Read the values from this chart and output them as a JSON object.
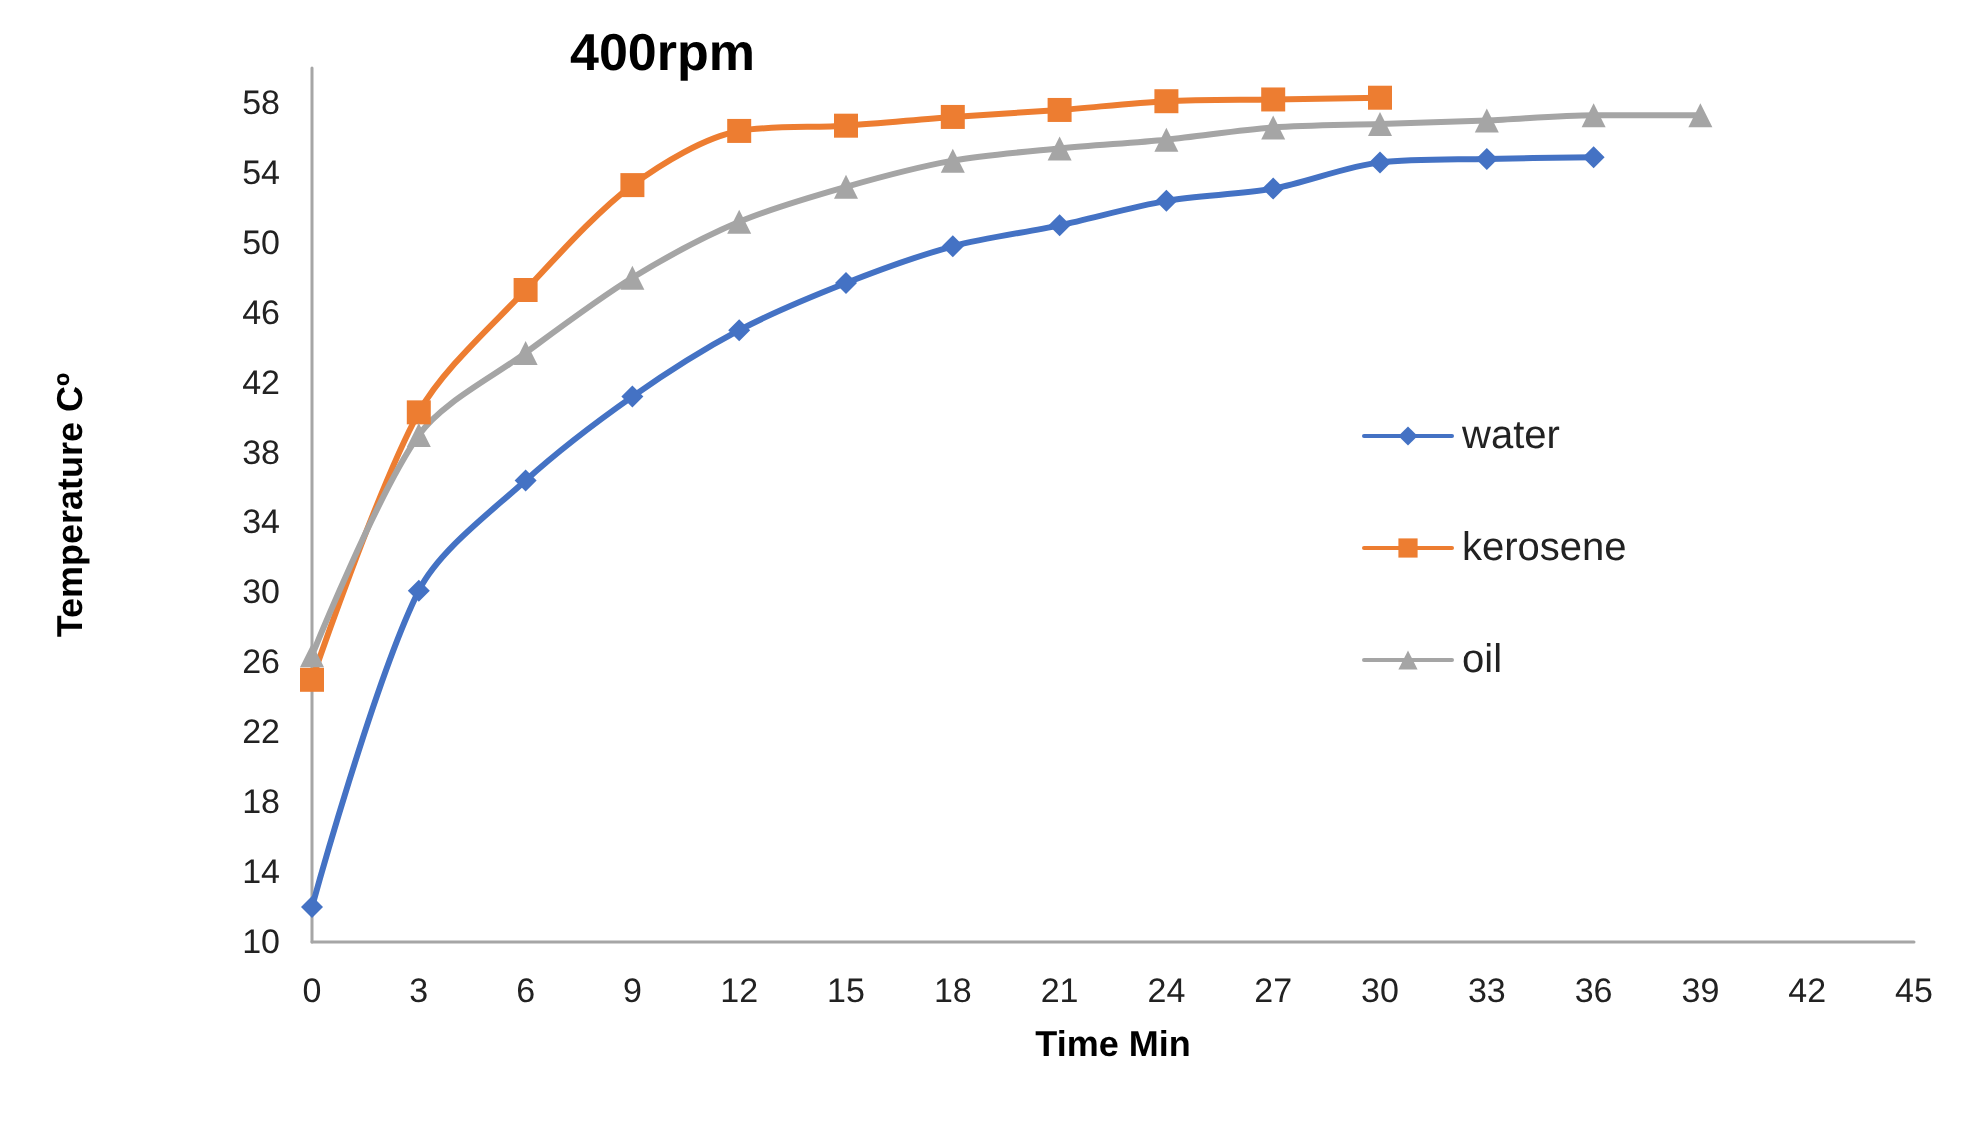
{
  "chart_data": {
    "type": "line",
    "title": "400rpm",
    "xlabel": "Time Min",
    "ylabel": "Temperature Cº",
    "xlim": [
      0,
      45
    ],
    "xticks": [
      0,
      3,
      6,
      9,
      12,
      15,
      18,
      21,
      24,
      27,
      30,
      33,
      36,
      39,
      42,
      45
    ],
    "ylim": [
      10,
      60
    ],
    "yticks": [
      10,
      14,
      18,
      22,
      26,
      30,
      34,
      38,
      42,
      46,
      50,
      54,
      58
    ],
    "grid": false,
    "legend": "right",
    "line_style": "solid",
    "series": [
      {
        "name": "water",
        "color": "#4472c4",
        "marker": "diamond",
        "x": [
          0,
          3,
          6,
          9,
          12,
          15,
          18,
          21,
          24,
          27,
          30,
          33,
          36
        ],
        "values": [
          12.0,
          30.1,
          36.4,
          41.2,
          45.0,
          47.7,
          49.8,
          51.0,
          52.4,
          53.1,
          54.6,
          54.8,
          54.9
        ]
      },
      {
        "name": "kerosene",
        "color": "#ed7d31",
        "marker": "square",
        "x": [
          0,
          3,
          6,
          9,
          12,
          15,
          18,
          21,
          24,
          27,
          30
        ],
        "values": [
          25.0,
          40.3,
          47.3,
          53.3,
          56.4,
          56.7,
          57.2,
          57.6,
          58.1,
          58.2,
          58.3
        ]
      },
      {
        "name": "oil",
        "color": "#a5a5a5",
        "marker": "triangle",
        "x": [
          0,
          3,
          6,
          9,
          12,
          15,
          18,
          21,
          24,
          27,
          30,
          33,
          36,
          39
        ],
        "values": [
          26.4,
          39.0,
          43.7,
          48.0,
          51.2,
          53.2,
          54.7,
          55.4,
          55.9,
          56.6,
          56.8,
          57.0,
          57.3,
          57.3
        ]
      }
    ]
  }
}
